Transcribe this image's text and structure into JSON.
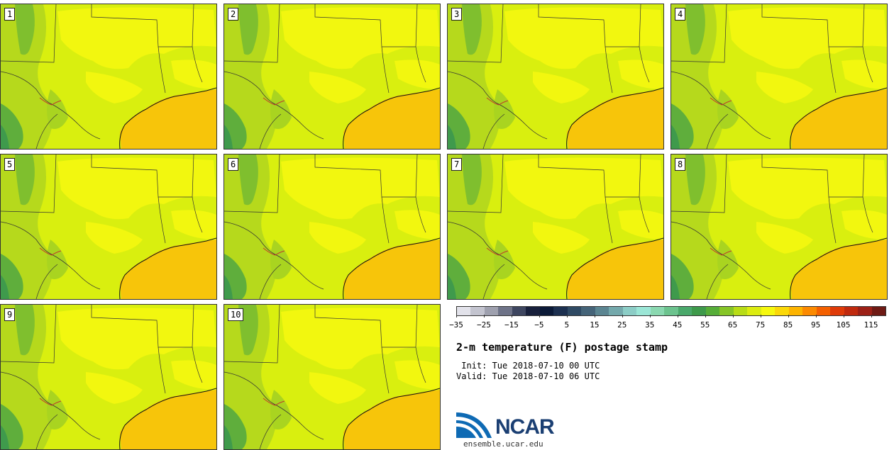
{
  "panels": [
    {
      "label": "1"
    },
    {
      "label": "2"
    },
    {
      "label": "3"
    },
    {
      "label": "4"
    },
    {
      "label": "5"
    },
    {
      "label": "6"
    },
    {
      "label": "7"
    },
    {
      "label": "8"
    },
    {
      "label": "9"
    },
    {
      "label": "10"
    }
  ],
  "colorbar": {
    "colors": [
      "#e2e2ea",
      "#c3c4cf",
      "#9ea0ae",
      "#6e7388",
      "#3e4660",
      "#18203c",
      "#0b1a38",
      "#1c3050",
      "#2f4a64",
      "#456479",
      "#5b8591",
      "#74a9ac",
      "#8ccdc6",
      "#9be6d6",
      "#8ad8b0",
      "#6cc38e",
      "#4aa96b",
      "#3e9a4b",
      "#56ad38",
      "#86c526",
      "#b8dc16",
      "#dcec10",
      "#f6f80e",
      "#fbd808",
      "#fdb400",
      "#fc8a00",
      "#f46000",
      "#df3b08",
      "#c02a0e",
      "#9c2016",
      "#6e1a14"
    ],
    "tick_labels": [
      "−35",
      "−25",
      "−15",
      "−5",
      "5",
      "15",
      "25",
      "35",
      "45",
      "55",
      "65",
      "75",
      "85",
      "95",
      "105",
      "115"
    ]
  },
  "title": "2-m temperature (F) postage stamp",
  "init": " Init: Tue 2018-07-10 00 UTC",
  "valid": "Valid: Tue 2018-07-10 06 UTC",
  "logo": {
    "name": "NCAR",
    "url": "ensemble.ucar.edu",
    "color": "#1b3f73"
  }
}
